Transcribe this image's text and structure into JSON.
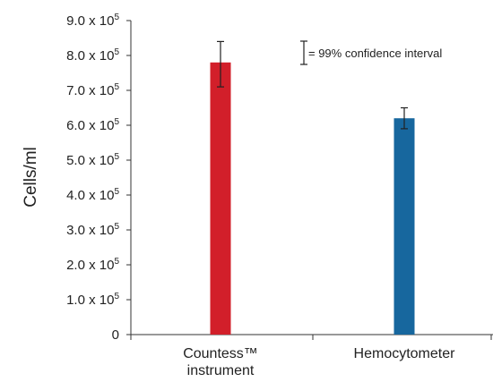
{
  "chart_data": {
    "type": "bar",
    "title": "",
    "xlabel": "",
    "ylabel": "Cells/ml",
    "ylim": [
      0,
      900000
    ],
    "grid": false,
    "y_ticks": [
      {
        "value": 0,
        "mantissa": "0",
        "exponent": ""
      },
      {
        "value": 100000,
        "mantissa": "1.0 x 10",
        "exponent": "5"
      },
      {
        "value": 200000,
        "mantissa": "2.0 x 10",
        "exponent": "5"
      },
      {
        "value": 300000,
        "mantissa": "3.0 x 10",
        "exponent": "5"
      },
      {
        "value": 400000,
        "mantissa": "4.0 x 10",
        "exponent": "5"
      },
      {
        "value": 500000,
        "mantissa": "5.0 x 10",
        "exponent": "5"
      },
      {
        "value": 600000,
        "mantissa": "6.0 x 10",
        "exponent": "5"
      },
      {
        "value": 700000,
        "mantissa": "7.0 x 10",
        "exponent": "5"
      },
      {
        "value": 800000,
        "mantissa": "8.0 x 10",
        "exponent": "5"
      },
      {
        "value": 900000,
        "mantissa": "9.0 x 10",
        "exponent": "5"
      }
    ],
    "categories": [
      {
        "lines": [
          "Countess™",
          "instrument"
        ],
        "value": 780000,
        "error_low": 710000,
        "error_high": 840000,
        "color": "#d21f2a"
      },
      {
        "lines": [
          "Hemocytometer"
        ],
        "value": 620000,
        "error_low": 590000,
        "error_high": 650000,
        "color": "#17679e"
      }
    ],
    "legend": {
      "placement": "top-right",
      "text": "= 99% confidence interval"
    }
  }
}
